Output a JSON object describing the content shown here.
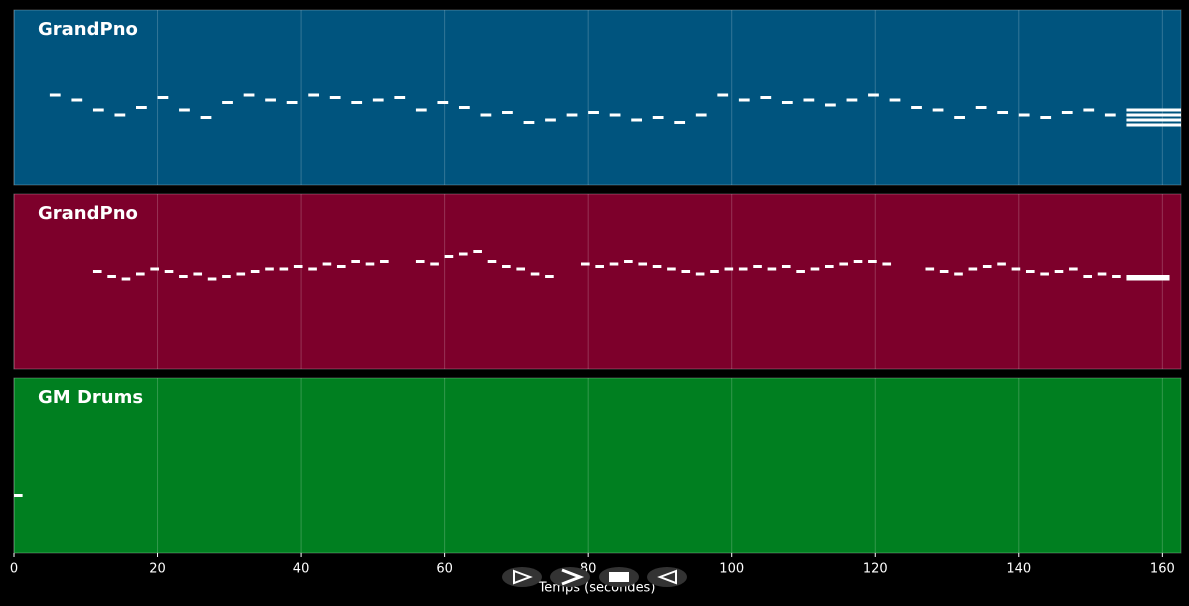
{
  "chart_data": {
    "type": "piano-roll",
    "x_label": "Temps (secondes)",
    "xlim": [
      0,
      162.6
    ],
    "xticks": [
      0,
      20,
      40,
      60,
      80,
      100,
      120,
      140,
      160
    ],
    "ylim": [
      30,
      100
    ],
    "grid": true,
    "note_color": "#ffffff",
    "series": [
      {
        "name": "GrandPno",
        "color": "#00547e",
        "x": [
          5,
          8,
          11,
          14,
          17,
          20,
          23,
          26,
          29,
          32,
          35,
          38,
          41,
          44,
          47,
          50,
          53,
          56,
          59,
          62,
          65,
          68,
          71,
          74,
          77,
          80,
          83,
          86,
          89,
          92,
          95,
          98,
          101,
          104,
          107,
          110,
          113,
          116,
          119,
          122,
          125,
          128,
          131,
          134,
          137,
          140,
          143,
          146,
          149,
          152,
          155,
          155,
          155,
          155
        ],
        "values": [
          66,
          64,
          60,
          58,
          61,
          65,
          60,
          57,
          63,
          66,
          64,
          63,
          66,
          65,
          63,
          64,
          65,
          60,
          63,
          61,
          58,
          59,
          55,
          56,
          58,
          59,
          58,
          56,
          57,
          55,
          58,
          66,
          64,
          65,
          63,
          64,
          62,
          64,
          66,
          64,
          61,
          60,
          57,
          61,
          59,
          58,
          57,
          59,
          60,
          58,
          54,
          56,
          58,
          60
        ],
        "durations": [
          1.5,
          1.5,
          1.5,
          1.5,
          1.5,
          1.5,
          1.5,
          1.5,
          1.5,
          1.5,
          1.5,
          1.5,
          1.5,
          1.5,
          1.5,
          1.5,
          1.5,
          1.5,
          1.5,
          1.5,
          1.5,
          1.5,
          1.5,
          1.5,
          1.5,
          1.5,
          1.5,
          1.5,
          1.5,
          1.5,
          1.5,
          1.5,
          1.5,
          1.5,
          1.5,
          1.5,
          1.5,
          1.5,
          1.5,
          1.5,
          1.5,
          1.5,
          1.5,
          1.5,
          1.5,
          1.5,
          1.5,
          1.5,
          1.5,
          1.5,
          7.6,
          7.6,
          7.6,
          7.6
        ]
      },
      {
        "name": "GrandPno",
        "color": "#7d002b",
        "x": [
          11,
          13,
          15,
          17,
          19,
          21,
          23,
          25,
          27,
          29,
          31,
          33,
          35,
          37,
          39,
          41,
          43,
          45,
          47,
          49,
          51,
          56,
          58,
          60,
          62,
          64,
          66,
          68,
          70,
          72,
          74,
          79,
          81,
          83,
          85,
          87,
          89,
          91,
          93,
          95,
          97,
          99,
          101,
          103,
          105,
          107,
          109,
          111,
          113,
          115,
          117,
          119,
          121,
          127,
          129,
          131,
          133,
          135,
          137,
          139,
          141,
          143,
          145,
          147,
          149,
          151,
          153,
          155,
          155
        ],
        "values": [
          69,
          67,
          66,
          68,
          70,
          69,
          67,
          68,
          66,
          67,
          68,
          69,
          70,
          70,
          71,
          70,
          72,
          71,
          73,
          72,
          73,
          73,
          72,
          75,
          76,
          77,
          73,
          71,
          70,
          68,
          67,
          72,
          71,
          72,
          73,
          72,
          71,
          70,
          69,
          68,
          69,
          70,
          70,
          71,
          70,
          71,
          69,
          70,
          71,
          72,
          73,
          73,
          72,
          70,
          69,
          68,
          70,
          71,
          72,
          70,
          69,
          68,
          69,
          70,
          67,
          68,
          67,
          66,
          67
        ],
        "durations": [
          1.2,
          1.2,
          1.2,
          1.2,
          1.2,
          1.2,
          1.2,
          1.2,
          1.2,
          1.2,
          1.2,
          1.2,
          1.2,
          1.2,
          1.2,
          1.2,
          1.2,
          1.2,
          1.2,
          1.2,
          1.2,
          1.2,
          1.2,
          1.2,
          1.2,
          1.2,
          1.2,
          1.2,
          1.2,
          1.2,
          1.2,
          1.2,
          1.2,
          1.2,
          1.2,
          1.2,
          1.2,
          1.2,
          1.2,
          1.2,
          1.2,
          1.2,
          1.2,
          1.2,
          1.2,
          1.2,
          1.2,
          1.2,
          1.2,
          1.2,
          1.2,
          1.2,
          1.2,
          1.2,
          1.2,
          1.2,
          1.2,
          1.2,
          1.2,
          1.2,
          1.2,
          1.2,
          1.2,
          1.2,
          1.2,
          1.2,
          1.2,
          6,
          6
        ]
      },
      {
        "name": "GM Drums",
        "color": "#007f20",
        "x": [
          0
        ],
        "values": [
          53
        ],
        "durations": [
          1.2
        ]
      }
    ]
  }
}
